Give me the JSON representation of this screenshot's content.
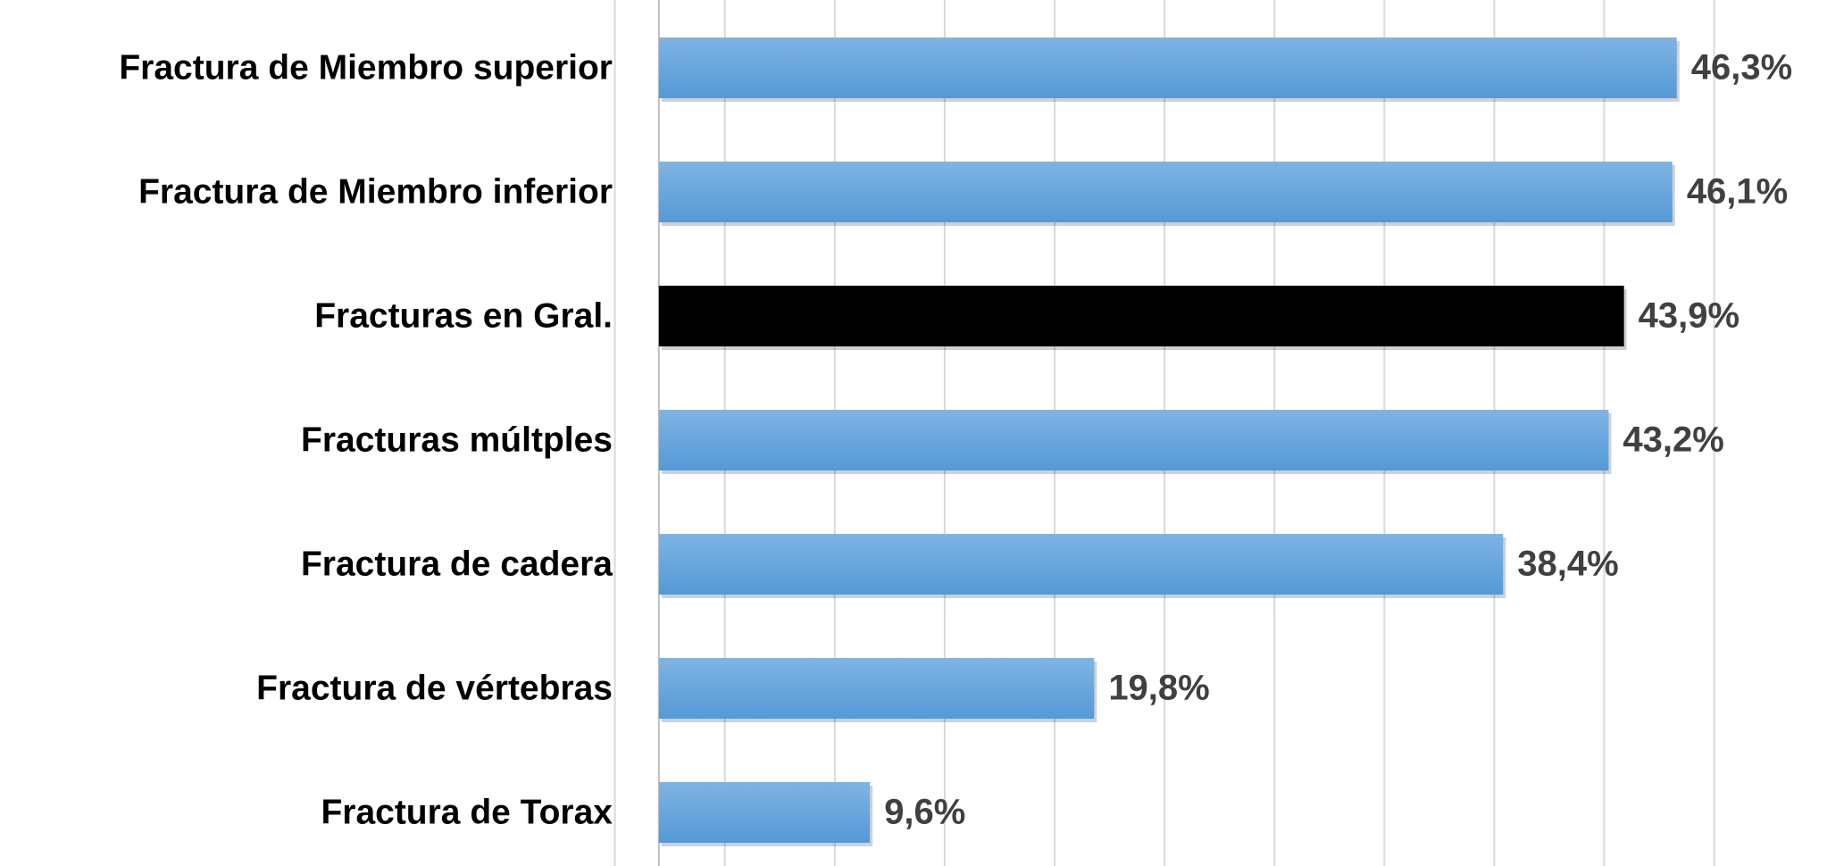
{
  "chart_data": {
    "type": "barh",
    "categories": [
      "Fractura de Miembro superior",
      "Fractura de Miembro inferior",
      "Fracturas en Gral.",
      "Fracturas múltples",
      "Fractura de cadera",
      "Fractura de vértebras",
      "Fractura de Torax"
    ],
    "values": [
      46.3,
      46.1,
      43.9,
      43.2,
      38.4,
      19.8,
      9.6
    ],
    "value_labels": [
      "46,3%",
      "46,1%",
      "43,9%",
      "43,2%",
      "38,4%",
      "19,8%",
      "9,6%"
    ],
    "colors": [
      "#5b9bd5",
      "#5b9bd5",
      "#000000",
      "#5b9bd5",
      "#5b9bd5",
      "#5b9bd5",
      "#5b9bd5"
    ],
    "xlim": [
      -2,
      50
    ],
    "xticks": [
      -2,
      3,
      8,
      13,
      18,
      23,
      28,
      33,
      38,
      43,
      48
    ],
    "grid": true
  }
}
